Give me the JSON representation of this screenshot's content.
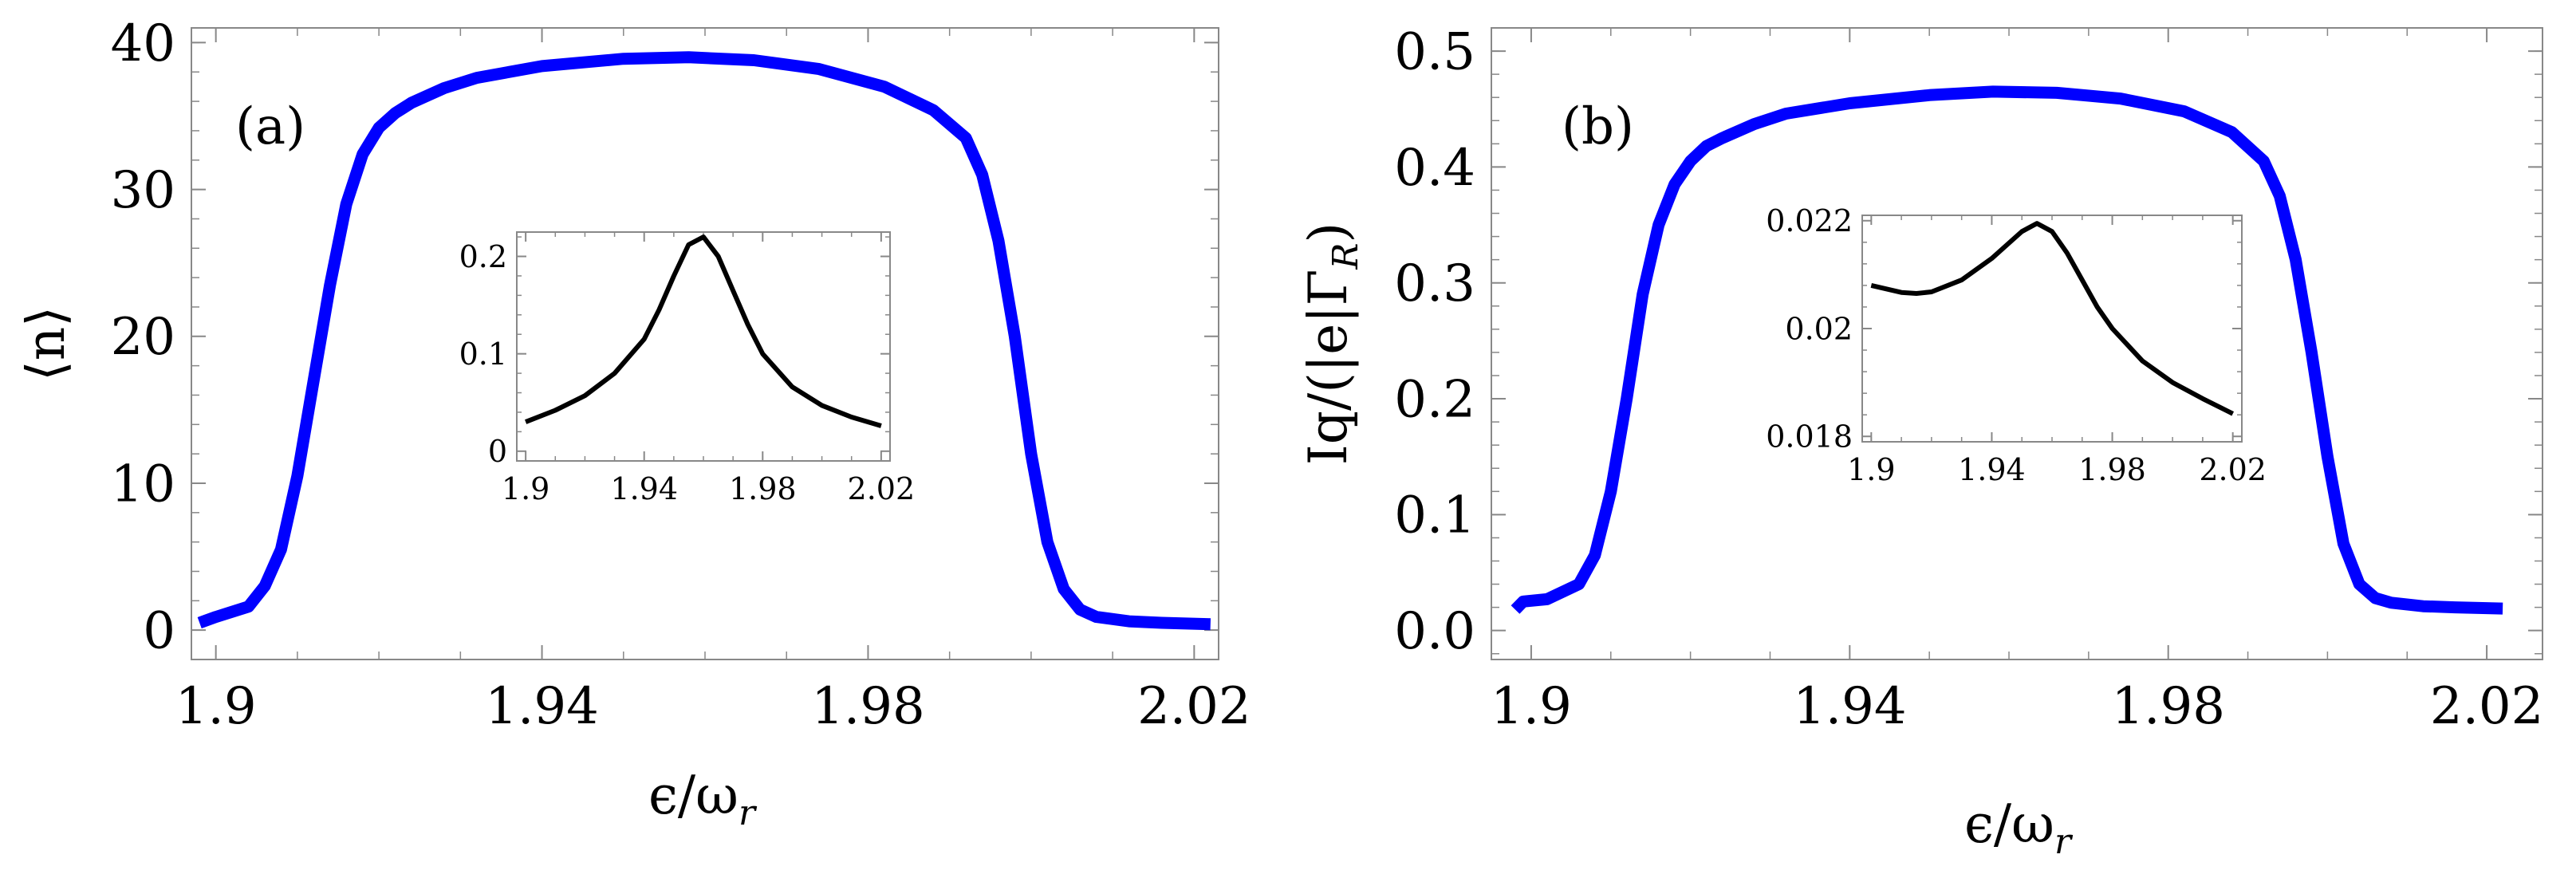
{
  "chart_data": [
    {
      "id": "a",
      "type": "line",
      "panel_label": "(a)",
      "ylabel": "⟨n⟩",
      "xlabel": "ϵ/ω",
      "xlabel_sub": "r",
      "xlim": [
        1.897,
        2.023
      ],
      "ylim": [
        -2,
        41
      ],
      "x_ticks": [
        1.9,
        1.94,
        1.98,
        2.02
      ],
      "x_tick_labels": [
        "1.9",
        "1.94",
        "1.98",
        "2.02"
      ],
      "y_ticks": [
        0,
        10,
        20,
        30,
        40
      ],
      "y_tick_labels": [
        "0",
        "10",
        "20",
        "30",
        "40"
      ],
      "series": [
        {
          "name": "main",
          "color": "#0000ff",
          "x": [
            1.898,
            1.9,
            1.904,
            1.906,
            1.908,
            1.91,
            1.912,
            1.914,
            1.916,
            1.918,
            1.92,
            1.922,
            1.924,
            1.928,
            1.932,
            1.94,
            1.95,
            1.958,
            1.966,
            1.974,
            1.982,
            1.988,
            1.992,
            1.994,
            1.996,
            1.998,
            2.0,
            2.002,
            2.004,
            2.006,
            2.008,
            2.012,
            2.016,
            2.022
          ],
          "y": [
            0.5,
            0.9,
            1.6,
            3.0,
            5.5,
            10.5,
            17.0,
            23.5,
            29.0,
            32.4,
            34.2,
            35.2,
            35.9,
            36.9,
            37.6,
            38.4,
            38.9,
            39.0,
            38.8,
            38.2,
            37.0,
            35.4,
            33.5,
            31.0,
            26.5,
            20.0,
            12.0,
            6.0,
            2.8,
            1.4,
            0.9,
            0.6,
            0.5,
            0.4
          ]
        }
      ],
      "inset": {
        "type": "line",
        "xlim": [
          1.897,
          2.023
        ],
        "ylim": [
          -0.01,
          0.225
        ],
        "x_ticks": [
          1.9,
          1.94,
          1.98,
          2.02
        ],
        "x_tick_labels": [
          "1.9",
          "1.94",
          "1.98",
          "2.02"
        ],
        "y_ticks": [
          0,
          0.1,
          0.2
        ],
        "y_tick_labels": [
          "0",
          "0.1",
          "0.2"
        ],
        "series": [
          {
            "name": "inset",
            "color": "#000000",
            "x": [
              1.9,
              1.91,
              1.92,
              1.93,
              1.94,
              1.945,
              1.95,
              1.955,
              1.96,
              1.965,
              1.97,
              1.975,
              1.98,
              1.99,
              2.0,
              2.01,
              2.02
            ],
            "y": [
              0.03,
              0.042,
              0.057,
              0.08,
              0.115,
              0.145,
              0.18,
              0.212,
              0.22,
              0.2,
              0.165,
              0.13,
              0.1,
              0.066,
              0.047,
              0.035,
              0.026
            ]
          }
        ]
      }
    },
    {
      "id": "b",
      "type": "line",
      "panel_label": "(b)",
      "ylabel": "Iq/(|e|Γ",
      "ylabel_sub": "R",
      "ylabel_tail": ")",
      "xlabel": "ϵ/ω",
      "xlabel_sub": "r",
      "xlim": [
        1.895,
        2.027
      ],
      "ylim": [
        -0.025,
        0.52
      ],
      "x_ticks": [
        1.9,
        1.94,
        1.98,
        2.02
      ],
      "x_tick_labels": [
        "1.9",
        "1.94",
        "1.98",
        "2.02"
      ],
      "y_ticks": [
        0.0,
        0.1,
        0.2,
        0.3,
        0.4,
        0.5
      ],
      "y_tick_labels": [
        "0.0",
        "0.1",
        "0.2",
        "0.3",
        "0.4",
        "0.5"
      ],
      "series": [
        {
          "name": "main",
          "color": "#0000ff",
          "x": [
            1.898,
            1.899,
            1.902,
            1.906,
            1.908,
            1.91,
            1.912,
            1.914,
            1.916,
            1.918,
            1.92,
            1.922,
            1.924,
            1.928,
            1.932,
            1.94,
            1.95,
            1.958,
            1.966,
            1.974,
            1.982,
            1.988,
            1.992,
            1.994,
            1.996,
            1.998,
            2.0,
            2.002,
            2.004,
            2.006,
            2.008,
            2.012,
            2.016,
            2.022
          ],
          "y": [
            0.018,
            0.025,
            0.027,
            0.04,
            0.065,
            0.12,
            0.2,
            0.29,
            0.35,
            0.385,
            0.405,
            0.418,
            0.425,
            0.437,
            0.446,
            0.455,
            0.462,
            0.465,
            0.464,
            0.459,
            0.448,
            0.43,
            0.405,
            0.375,
            0.32,
            0.24,
            0.15,
            0.075,
            0.04,
            0.028,
            0.024,
            0.021,
            0.02,
            0.019
          ]
        }
      ],
      "inset": {
        "type": "line",
        "xlim": [
          1.897,
          2.023
        ],
        "ylim": [
          0.0179,
          0.0221
        ],
        "x_ticks": [
          1.9,
          1.94,
          1.98,
          2.02
        ],
        "x_tick_labels": [
          "1.9",
          "1.94",
          "1.98",
          "2.02"
        ],
        "y_ticks": [
          0.018,
          0.02,
          0.022
        ],
        "y_tick_labels": [
          "0.018",
          "0.02",
          "0.022"
        ],
        "series": [
          {
            "name": "inset",
            "color": "#000000",
            "x": [
              1.9,
              1.91,
              1.915,
              1.92,
              1.93,
              1.94,
              1.945,
              1.95,
              1.955,
              1.96,
              1.965,
              1.97,
              1.975,
              1.98,
              1.99,
              2.0,
              2.01,
              2.02
            ],
            "y": [
              0.0208,
              0.02067,
              0.02065,
              0.02068,
              0.0209,
              0.0213,
              0.02155,
              0.0218,
              0.02195,
              0.0218,
              0.0214,
              0.0209,
              0.0204,
              0.02,
              0.0194,
              0.019,
              0.0187,
              0.01842
            ]
          }
        ]
      }
    }
  ]
}
